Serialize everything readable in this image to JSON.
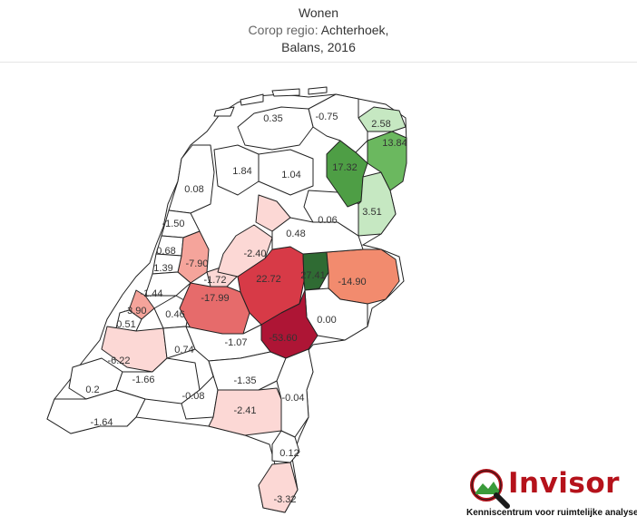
{
  "header": {
    "title": "Wonen",
    "subtitle_prefix": "Corop regio: ",
    "region": "Achterhoek,",
    "subtitle_2": "Balans, 2016"
  },
  "colors": {
    "neutral": "#ffffff",
    "positive_scale": [
      "#c6e8c2",
      "#8fce89",
      "#6bb85f",
      "#4e9e45",
      "#2f6b33"
    ],
    "negative_scale": [
      "#fcd8d5",
      "#f5a49b",
      "#e66b6b",
      "#d73a47",
      "#ae1535"
    ]
  },
  "map": {
    "regions": [
      {
        "id": "delfzijl",
        "value": "2.58"
      },
      {
        "id": "oost-groningen",
        "value": "13.84"
      },
      {
        "id": "noord-drenthe",
        "value": "17.32"
      },
      {
        "id": "zuidoost-drenthe",
        "value": "3.51"
      },
      {
        "id": "zuidwest-drenthe",
        "value": "0.06"
      },
      {
        "id": "overig-groningen",
        "value": "-0.75"
      },
      {
        "id": "noord-friesland",
        "value": "0.35"
      },
      {
        "id": "zuidwest-friesland",
        "value": "1.84"
      },
      {
        "id": "zuidoost-friesland",
        "value": "1.04"
      },
      {
        "id": "noord-overijssel",
        "value": "0.48"
      },
      {
        "id": "twente",
        "value": "-14.90"
      },
      {
        "id": "achterhoek",
        "value": "27.41"
      },
      {
        "id": "veluwe",
        "value": "22.72"
      },
      {
        "id": "flevoland",
        "value": "-2.40"
      },
      {
        "id": "kop-nh",
        "value": "0.08"
      },
      {
        "id": "alkmaar",
        "value": "-1.50"
      },
      {
        "id": "ijmond",
        "value": "0.68"
      },
      {
        "id": "zaanstreek",
        "value": "-7.90"
      },
      {
        "id": "haarlem",
        "value": "1.39"
      },
      {
        "id": "het-gooi",
        "value": "-1.72"
      },
      {
        "id": "utrecht",
        "value": "-17.99"
      },
      {
        "id": "leiden",
        "value": "-1.44"
      },
      {
        "id": "agglomeratie-den-haag",
        "value": "-3.90"
      },
      {
        "id": "delft",
        "value": "0.51"
      },
      {
        "id": "oost-zh",
        "value": "0.46"
      },
      {
        "id": "arnhem-nijmegen",
        "value": "-53.60"
      },
      {
        "id": "zuidwest-gelderland",
        "value": "-1.07"
      },
      {
        "id": "de-liemers",
        "value": "0.00"
      },
      {
        "id": "groot-rijnmond",
        "value": "-6.22"
      },
      {
        "id": "drechtsteden",
        "value": "0.74"
      },
      {
        "id": "zeeuws-vlaanderen-n",
        "value": "0.2"
      },
      {
        "id": "west-nb",
        "value": "-1.66"
      },
      {
        "id": "midden-nb",
        "value": "-0.08"
      },
      {
        "id": "noordoost-nb",
        "value": "-1.35"
      },
      {
        "id": "zuidoost-nb",
        "value": "-2.41"
      },
      {
        "id": "noord-limburg",
        "value": "-0.04"
      },
      {
        "id": "zeeuws-vlaanderen",
        "value": "-1.64"
      },
      {
        "id": "midden-limburg",
        "value": "0.12"
      },
      {
        "id": "zuid-limburg",
        "value": "-3.32"
      }
    ]
  },
  "logo": {
    "name": "Invisor",
    "tagline": "Kenniscentrum voor ruimtelijke analyse"
  }
}
